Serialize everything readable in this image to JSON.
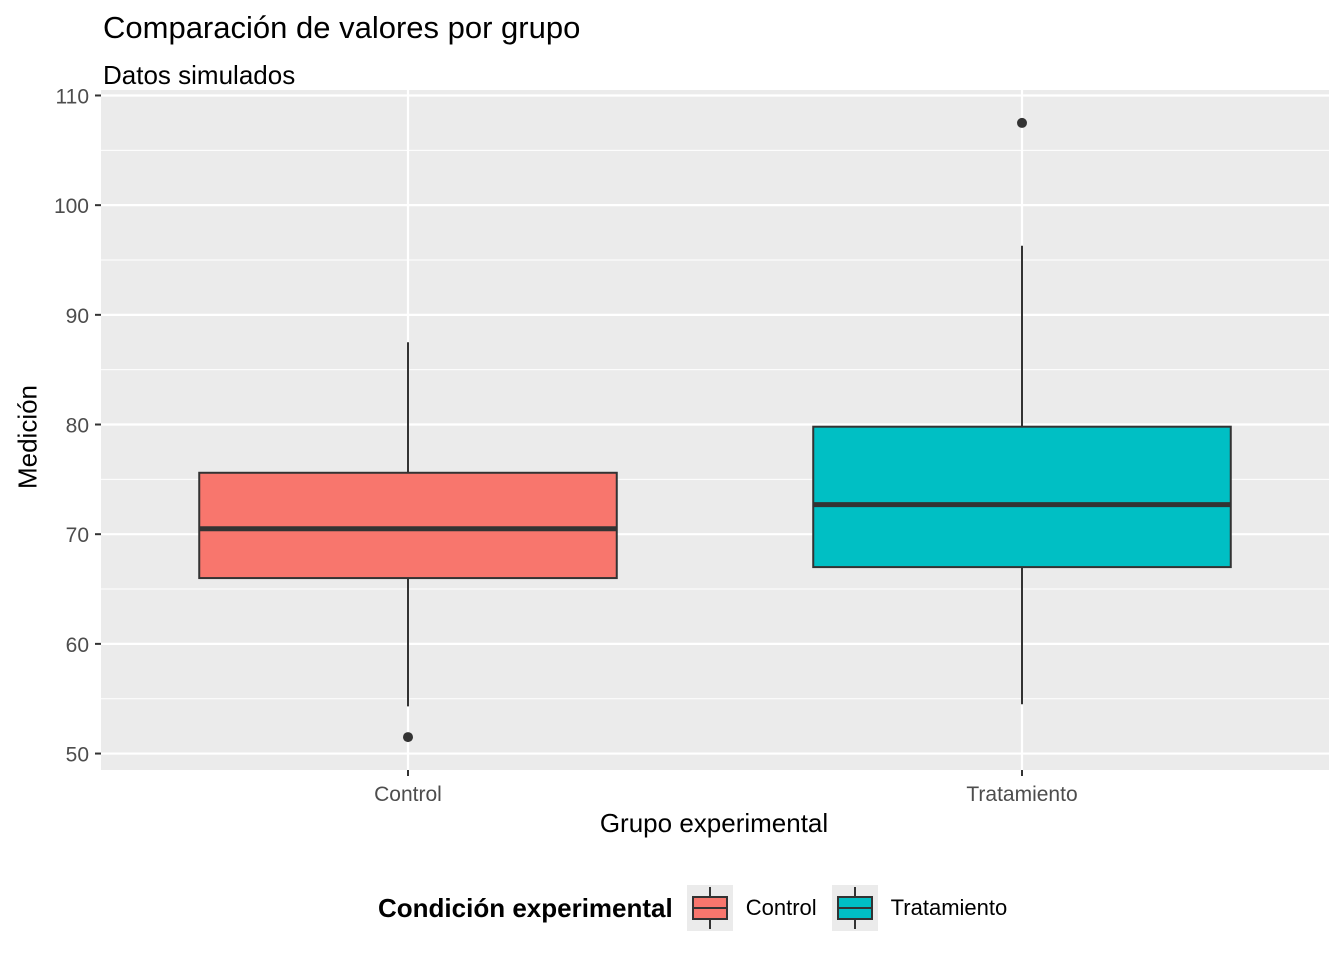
{
  "chart_data": {
    "type": "boxplot",
    "title": "Comparación de valores por grupo",
    "subtitle": "Datos simulados",
    "xlabel": "Grupo experimental",
    "ylabel": "Medición",
    "ylim": [
      48.5,
      110.5
    ],
    "y_ticks": [
      50,
      60,
      70,
      80,
      90,
      100,
      110
    ],
    "y_minor_ticks": [
      55,
      65,
      75,
      85,
      95,
      105
    ],
    "categories": [
      "Control",
      "Tratamiento"
    ],
    "series": [
      {
        "name": "Control",
        "color": "#F8766D",
        "min": 54.3,
        "q1": 66.0,
        "median": 70.5,
        "q3": 75.6,
        "max": 87.5,
        "outliers": [
          51.5
        ]
      },
      {
        "name": "Tratamiento",
        "color": "#00BFC4",
        "min": 54.5,
        "q1": 67.0,
        "median": 72.7,
        "q3": 79.8,
        "max": 96.3,
        "outliers": [
          107.5
        ]
      }
    ],
    "grid": true,
    "legend": {
      "title": "Condición experimental",
      "position": "bottom",
      "entries": [
        "Control",
        "Tratamiento"
      ]
    }
  },
  "colors": {
    "panel": "#ebebeb",
    "grid": "#ffffff",
    "box_line": "#333333",
    "tick_text": "#4d4d4d",
    "tick_mark": "#333333"
  }
}
